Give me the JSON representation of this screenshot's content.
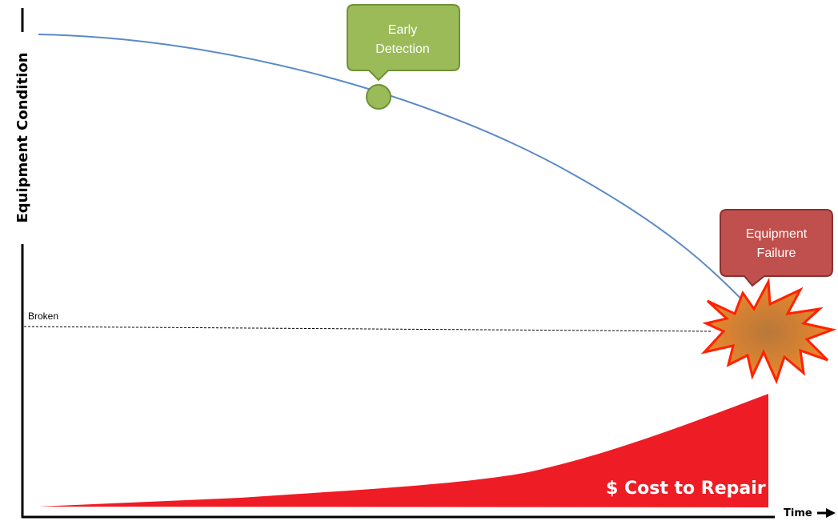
{
  "y_axis": {
    "label": "Equipment Condition"
  },
  "x_axis": {
    "label": "Time"
  },
  "threshold": {
    "label": "Broken"
  },
  "early_detection": {
    "line1": "Early",
    "line2": "Detection"
  },
  "equipment_failure": {
    "line1": "Equipment",
    "line2": "Failure"
  },
  "cost": {
    "label": "$ Cost to Repair"
  },
  "colors": {
    "condition_curve": "#5b8ac7",
    "early_detection": "#9bbb59",
    "early_detection_border": "#6f9138",
    "equipment_failure": "#c0504d",
    "equipment_failure_border": "#8c3130",
    "cost_fill": "#ee1c25",
    "explosion_border": "#ff2200",
    "explosion_inner": "#b8783a",
    "explosion_outer": "#f0892c"
  }
}
